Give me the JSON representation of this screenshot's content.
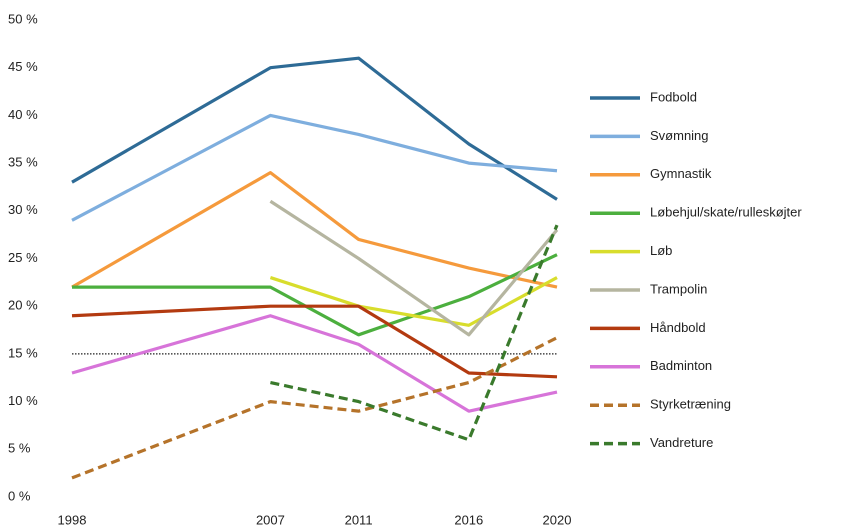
{
  "chart_data": {
    "type": "line",
    "x": [
      1998,
      2007,
      2011,
      2016,
      2020
    ],
    "xlim": [
      1998,
      2020
    ],
    "xticks": [
      1998,
      2007,
      2011,
      2016,
      2020
    ],
    "ylim": [
      0,
      50
    ],
    "yticks": [
      {
        "value": 0,
        "label": "0 %"
      },
      {
        "value": 5,
        "label": "5 %"
      },
      {
        "value": 10,
        "label": "10 %"
      },
      {
        "value": 15,
        "label": "15 %"
      },
      {
        "value": 20,
        "label": "20 %"
      },
      {
        "value": 25,
        "label": "25 %"
      },
      {
        "value": 30,
        "label": "30 %"
      },
      {
        "value": 35,
        "label": "35 %"
      },
      {
        "value": 40,
        "label": "40 %"
      },
      {
        "value": 45,
        "label": "45 %"
      },
      {
        "value": 50,
        "label": "50 %"
      }
    ],
    "reference_line": 15,
    "legend": "right",
    "series": [
      {
        "name": "Fodbold",
        "color": "#2e6b96",
        "dashed": false,
        "values": [
          33,
          45,
          46,
          37,
          31.2
        ]
      },
      {
        "name": "Svømning",
        "color": "#7eaede",
        "dashed": false,
        "values": [
          29,
          40,
          38,
          35,
          34.2
        ]
      },
      {
        "name": "Gymnastik",
        "color": "#f59a3c",
        "dashed": false,
        "values": [
          22,
          34,
          27,
          24,
          22
        ]
      },
      {
        "name": "Løbehjul/skate/rulleskøjter",
        "color": "#4caf3e",
        "dashed": false,
        "values": [
          22,
          22,
          17,
          21,
          25.4
        ]
      },
      {
        "name": "Løb",
        "color": "#d8dd2c",
        "dashed": false,
        "values": [
          null,
          23,
          20,
          18,
          23
        ]
      },
      {
        "name": "Trampolin",
        "color": "#b5b5a0",
        "dashed": false,
        "values": [
          null,
          31,
          25,
          17,
          28
        ]
      },
      {
        "name": "Håndbold",
        "color": "#b33a10",
        "dashed": false,
        "values": [
          19,
          20,
          20,
          13,
          12.6
        ]
      },
      {
        "name": "Badminton",
        "color": "#d774d9",
        "dashed": false,
        "values": [
          13,
          19,
          16,
          9,
          11
        ]
      },
      {
        "name": "Styrketræning",
        "color": "#b5732a",
        "dashed": true,
        "values": [
          2,
          10,
          9,
          12,
          16.7
        ]
      },
      {
        "name": "Vandreture",
        "color": "#3a7a2c",
        "dashed": true,
        "values": [
          null,
          12,
          10,
          6,
          28.5
        ]
      }
    ]
  }
}
